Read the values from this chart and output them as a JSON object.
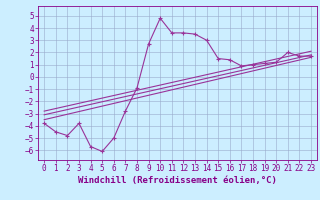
{
  "xlabel": "Windchill (Refroidissement éolien,°C)",
  "bg_color": "#cceeff",
  "line_color": "#993399",
  "xlim": [
    -0.5,
    23.5
  ],
  "ylim": [
    -6.8,
    5.8
  ],
  "yticks": [
    -6,
    -5,
    -4,
    -3,
    -2,
    -1,
    0,
    1,
    2,
    3,
    4,
    5
  ],
  "xticks": [
    0,
    1,
    2,
    3,
    4,
    5,
    6,
    7,
    8,
    9,
    10,
    11,
    12,
    13,
    14,
    15,
    16,
    17,
    18,
    19,
    20,
    21,
    22,
    23
  ],
  "main_line_x": [
    0,
    1,
    2,
    3,
    4,
    5,
    6,
    7,
    8,
    9,
    10,
    11,
    12,
    13,
    14,
    15,
    16,
    17,
    18,
    19,
    20,
    21,
    22,
    23
  ],
  "main_line_y": [
    -3.8,
    -4.5,
    -4.8,
    -3.8,
    -5.7,
    -6.1,
    -5.0,
    -2.8,
    -0.9,
    2.7,
    4.8,
    3.6,
    3.6,
    3.5,
    3.0,
    1.5,
    1.4,
    0.9,
    1.0,
    1.1,
    1.2,
    2.0,
    1.7,
    1.7
  ],
  "linear_line1_x": [
    0,
    23
  ],
  "linear_line1_y": [
    -3.5,
    1.6
  ],
  "linear_line2_x": [
    0,
    23
  ],
  "linear_line2_y": [
    -3.1,
    1.8
  ],
  "linear_line3_x": [
    0,
    23
  ],
  "linear_line3_y": [
    -2.8,
    2.1
  ],
  "grid_color": "#99aacc",
  "font_color": "#880088",
  "tick_fontsize": 5.5,
  "xlabel_fontsize": 6.5
}
